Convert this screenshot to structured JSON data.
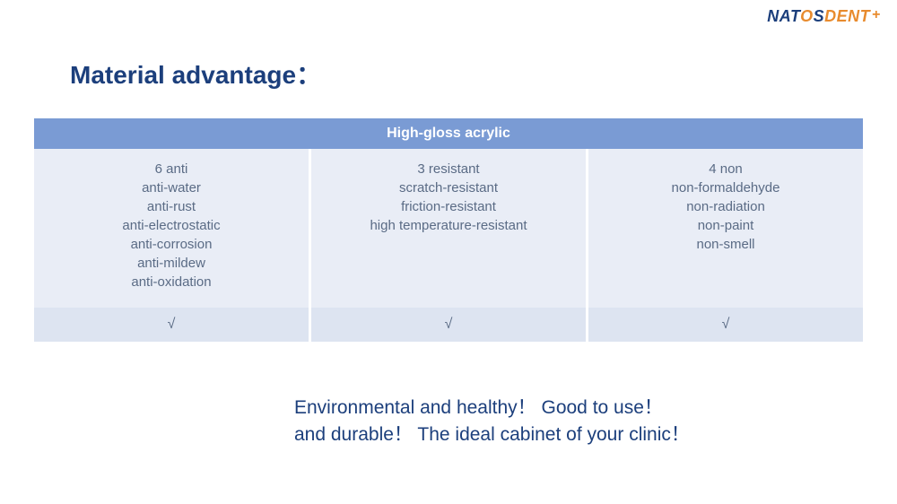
{
  "logo": {
    "part1": "NAT",
    "part2": "O",
    "part3": "S",
    "part4": "DENT",
    "plus": "+"
  },
  "title": "Material advantage：",
  "table": {
    "header": "High-gloss acrylic",
    "columns": [
      {
        "head": "6 anti",
        "items": [
          "anti-water",
          "anti-rust",
          "anti-electrostatic",
          "anti-corrosion",
          "anti-mildew",
          "anti-oxidation"
        ],
        "check": "√"
      },
      {
        "head": "3 resistant",
        "items": [
          "scratch-resistant",
          "friction-resistant",
          "high temperature-resistant"
        ],
        "check": "√"
      },
      {
        "head": "4 non",
        "items": [
          "non-formaldehyde",
          "non-radiation",
          "non-paint",
          "non-smell"
        ],
        "check": "√"
      }
    ]
  },
  "tagline": {
    "line1": "Environmental and healthy！ Good to use！",
    "line2": "and durable！ The ideal cabinet of your clinic！"
  },
  "colors": {
    "navy": "#1c3f7c",
    "orange": "#e88b2e",
    "header_bg": "#7a9bd4",
    "cell_bg": "#e9edf6",
    "check_bg": "#dde4f1",
    "body_text": "#5a6b85"
  }
}
